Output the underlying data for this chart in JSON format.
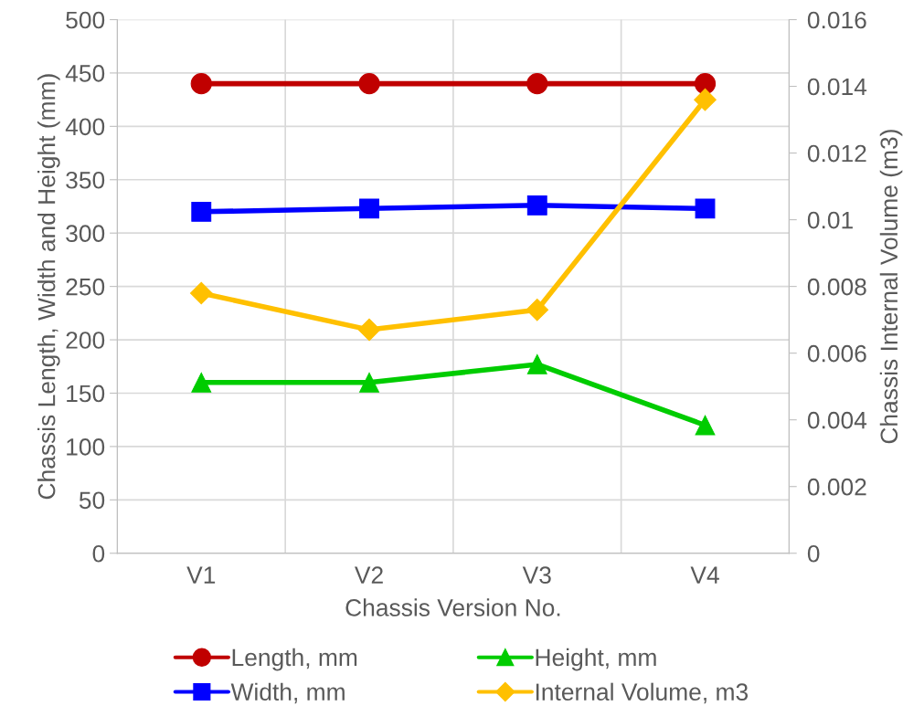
{
  "chart_data": {
    "type": "line",
    "xlabel": "Chassis Version No.",
    "ylabel": "Chassis Length, Width and Height (mm)",
    "y2label": "Chassis Internal Volume (m3)",
    "categories": [
      "V1",
      "V2",
      "V3",
      "V4"
    ],
    "series": [
      {
        "name": "Length, mm",
        "color": "#c00000",
        "marker": "circle",
        "values": [
          440,
          440,
          440,
          440
        ]
      },
      {
        "name": "Width, mm",
        "color": "#0000ff",
        "marker": "square",
        "values": [
          320,
          323,
          326,
          323
        ]
      },
      {
        "name": "Height, mm",
        "color": "#00cc00",
        "marker": "triangle",
        "values": [
          160,
          160,
          177,
          120
        ]
      },
      {
        "name": "Internal Volume, m3",
        "color": "#ffc000",
        "marker": "diamond",
        "axis": "y2",
        "values": [
          0.0078,
          0.0067,
          0.0073,
          0.0136
        ]
      }
    ],
    "ylim": [
      0,
      500
    ],
    "yticks": [
      0,
      50,
      100,
      150,
      200,
      250,
      300,
      350,
      400,
      450,
      500
    ],
    "y2lim": [
      0,
      0.016
    ],
    "y2ticks": [
      0,
      0.002,
      0.004,
      0.006,
      0.008,
      0.01,
      0.012,
      0.014,
      0.016
    ],
    "grid": true,
    "legend": "bottom"
  }
}
